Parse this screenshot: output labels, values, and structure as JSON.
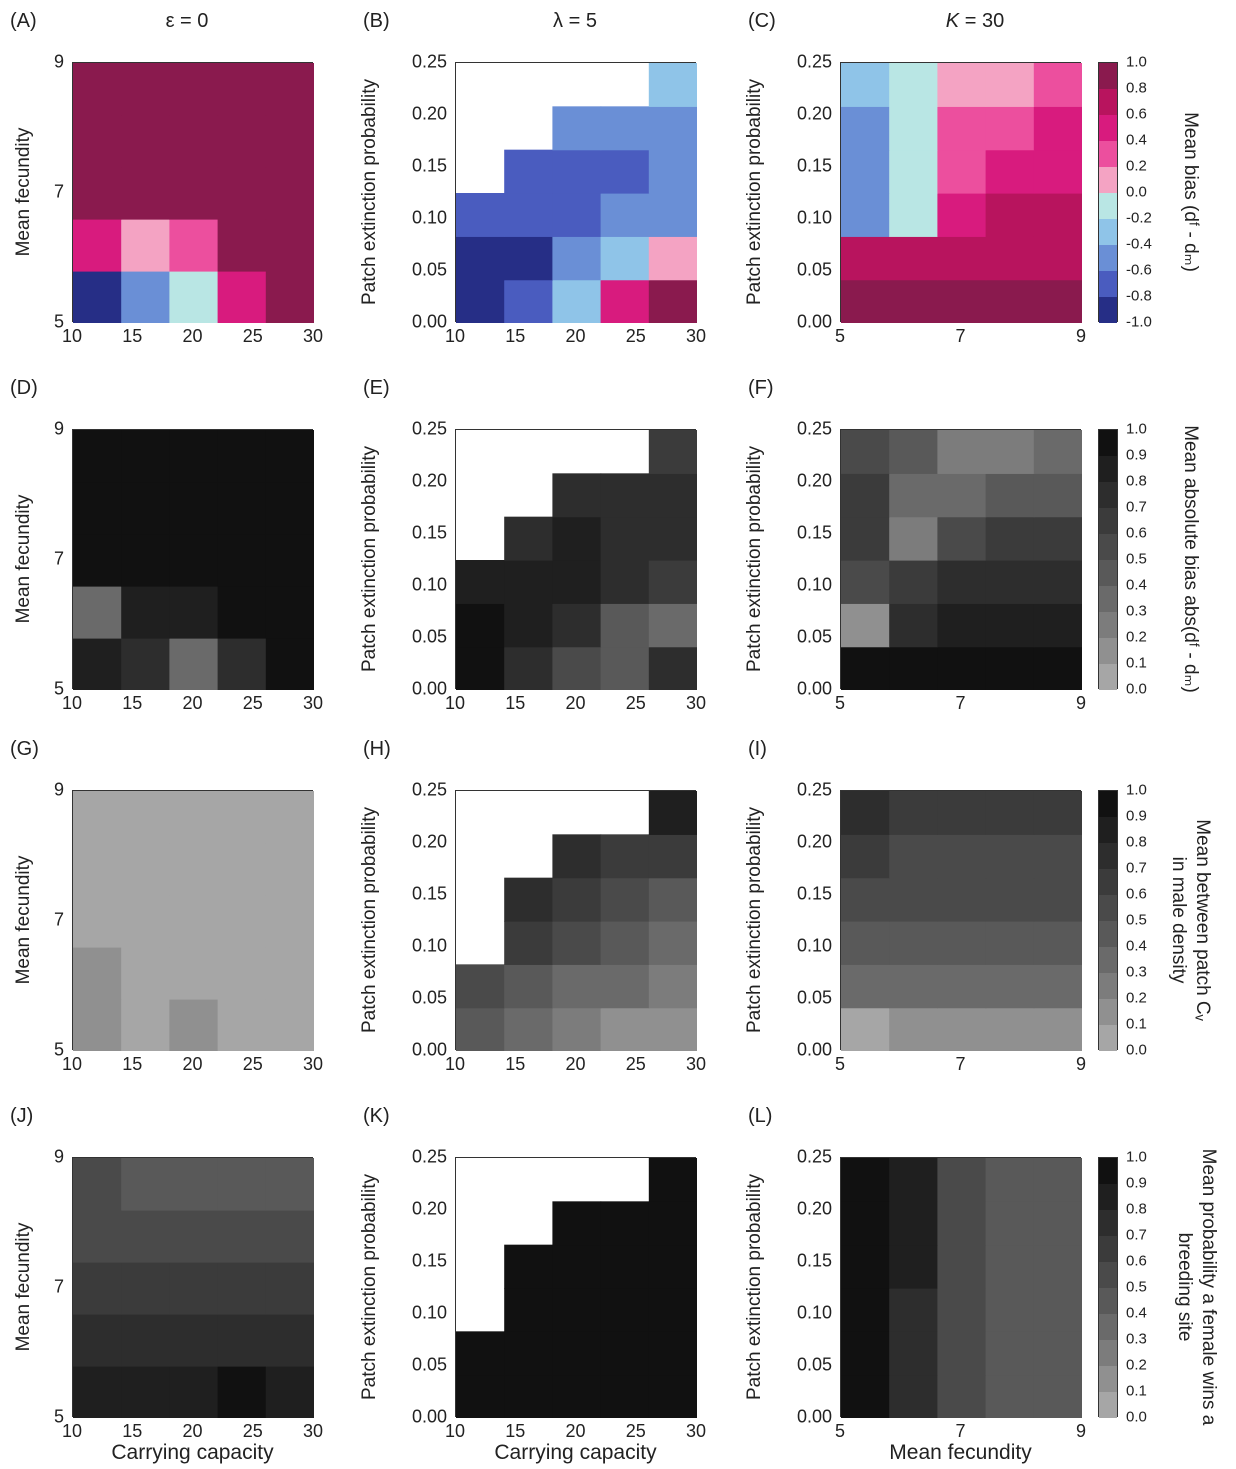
{
  "column_titles": [
    "ε = 0",
    "λ = 5",
    "K = 30"
  ],
  "panel_labels": [
    "(A)",
    "(B)",
    "(C)",
    "(D)",
    "(E)",
    "(F)",
    "(G)",
    "(H)",
    "(I)",
    "(J)",
    "(K)",
    "(L)"
  ],
  "axis_labels": {
    "mean_fecundity": "Mean fecundity",
    "patch_extinction": "Patch extinction probability",
    "carrying_capacity": "Carrying capacity",
    "mean_fecundity_x": "Mean fecundity"
  },
  "ticks": {
    "fecundity": [
      "5",
      "7",
      "9"
    ],
    "capacity": [
      "10",
      "15",
      "20",
      "25",
      "30"
    ],
    "capacity_last": [
      "10",
      "15",
      "20",
      "25",
      "30"
    ],
    "extinction": [
      "0.00",
      "0.05",
      "0.10",
      "0.15",
      "0.20",
      "0.25"
    ]
  },
  "colorbars": [
    {
      "label": "Mean bias (dᶠ - dₘ)",
      "ticks": [
        "1.0",
        "0.8",
        "0.6",
        "0.4",
        "0.2",
        "0.0",
        "-0.2",
        "-0.4",
        "-0.6",
        "-0.8",
        "-1.0"
      ],
      "colors": [
        "#8a1a4e",
        "#b8145e",
        "#d81b7e",
        "#ec4f9e",
        "#f4a3c3",
        "#b9e6e4",
        "#8fc4e8",
        "#6a8fd6",
        "#4a5cbf",
        "#262e86"
      ]
    },
    {
      "label": "Mean absolute bias abs(dᶠ - dₘ)",
      "ticks": [
        "1.0",
        "0.9",
        "0.8",
        "0.7",
        "0.6",
        "0.5",
        "0.4",
        "0.3",
        "0.2",
        "0.1",
        "0.0"
      ],
      "colors": [
        "#111111",
        "#1f1f1f",
        "#2d2d2d",
        "#3b3b3b",
        "#4a4a4a",
        "#595959",
        "#6a6a6a",
        "#7c7c7c",
        "#909090",
        "#a6a6a6"
      ]
    },
    {
      "label": "Mean between patch Cᵥ|in male density",
      "ticks": [
        "1.0",
        "0.9",
        "0.8",
        "0.7",
        "0.6",
        "0.5",
        "0.4",
        "0.3",
        "0.2",
        "0.1",
        "0.0"
      ],
      "colors": [
        "#111111",
        "#1f1f1f",
        "#2d2d2d",
        "#3b3b3b",
        "#4a4a4a",
        "#595959",
        "#6a6a6a",
        "#7c7c7c",
        "#909090",
        "#a6a6a6"
      ]
    },
    {
      "label": "Mean probability a female wins a|breeding site",
      "ticks": [
        "1.0",
        "0.9",
        "0.8",
        "0.7",
        "0.6",
        "0.5",
        "0.4",
        "0.3",
        "0.2",
        "0.1",
        "0.0"
      ],
      "colors": [
        "#111111",
        "#1f1f1f",
        "#2d2d2d",
        "#3b3b3b",
        "#4a4a4a",
        "#595959",
        "#6a6a6a",
        "#7c7c7c",
        "#909090",
        "#a6a6a6"
      ]
    }
  ],
  "chart_data": [
    {
      "panel": "A",
      "type": "heatmap",
      "x": [
        10,
        15,
        20,
        25,
        30
      ],
      "y": [
        5,
        6,
        7,
        8,
        9
      ],
      "xlabel": "",
      "ylabel": "Mean fecundity",
      "zlim": [
        -1,
        1
      ],
      "z": [
        [
          -0.9,
          -0.5,
          -0.2,
          0.5,
          1.0
        ],
        [
          0.4,
          0.1,
          0.2,
          1.0,
          1.0
        ],
        [
          1.0,
          1.0,
          1.0,
          1.0,
          1.0
        ],
        [
          1.0,
          1.0,
          1.0,
          1.0,
          1.0
        ],
        [
          1.0,
          1.0,
          1.0,
          1.0,
          1.0
        ]
      ]
    },
    {
      "panel": "B",
      "type": "heatmap",
      "x": [
        10,
        15,
        20,
        25,
        30
      ],
      "y": [
        0,
        0.05,
        0.1,
        0.15,
        0.2,
        0.25
      ],
      "xlabel": "",
      "ylabel": "Patch extinction probability",
      "zlim": [
        -1,
        1
      ],
      "z": [
        [
          -0.9,
          -0.7,
          -0.4,
          0.4,
          0.9
        ],
        [
          -0.9,
          -0.8,
          -0.6,
          -0.3,
          0.1
        ],
        [
          -0.7,
          -0.7,
          -0.7,
          -0.6,
          -0.5
        ],
        [
          null,
          -0.7,
          -0.7,
          -0.7,
          -0.6
        ],
        [
          null,
          null,
          -0.6,
          -0.6,
          -0.6
        ],
        [
          null,
          null,
          null,
          null,
          -0.4
        ]
      ]
    },
    {
      "panel": "C",
      "type": "heatmap",
      "x": [
        5,
        6,
        7,
        8,
        9
      ],
      "y": [
        0,
        0.05,
        0.1,
        0.15,
        0.2,
        0.25
      ],
      "xlabel": "",
      "ylabel": "Patch extinction probability",
      "zlim": [
        -1,
        1
      ],
      "z": [
        [
          0.8,
          0.9,
          0.9,
          0.9,
          0.9
        ],
        [
          0.6,
          0.6,
          0.7,
          0.7,
          0.7
        ],
        [
          -0.5,
          -0.1,
          0.5,
          0.6,
          0.6
        ],
        [
          -0.6,
          -0.1,
          0.3,
          0.5,
          0.5
        ],
        [
          -0.6,
          -0.1,
          0.2,
          0.3,
          0.4
        ],
        [
          -0.3,
          -0.1,
          0.1,
          0.1,
          0.2
        ]
      ]
    },
    {
      "panel": "D",
      "type": "heatmap",
      "x": [
        10,
        15,
        20,
        25,
        30
      ],
      "y": [
        5,
        6,
        7,
        8,
        9
      ],
      "xlabel": "",
      "ylabel": "Mean fecundity",
      "zlim": [
        0,
        1
      ],
      "z": [
        [
          0.85,
          0.7,
          0.3,
          0.75,
          1.0
        ],
        [
          0.3,
          0.85,
          0.85,
          1.0,
          1.0
        ],
        [
          1.0,
          1.0,
          1.0,
          1.0,
          1.0
        ],
        [
          1.0,
          1.0,
          1.0,
          1.0,
          1.0
        ],
        [
          1.0,
          1.0,
          1.0,
          1.0,
          1.0
        ]
      ]
    },
    {
      "panel": "E",
      "type": "heatmap",
      "x": [
        10,
        15,
        20,
        25,
        30
      ],
      "y": [
        0,
        0.05,
        0.1,
        0.15,
        0.2,
        0.25
      ],
      "xlabel": "",
      "ylabel": "Patch extinction probability",
      "zlim": [
        0,
        1
      ],
      "z": [
        [
          0.9,
          0.75,
          0.5,
          0.45,
          0.75
        ],
        [
          0.9,
          0.85,
          0.7,
          0.4,
          0.35
        ],
        [
          0.8,
          0.85,
          0.8,
          0.7,
          0.6
        ],
        [
          null,
          0.75,
          0.8,
          0.75,
          0.7
        ],
        [
          null,
          null,
          0.7,
          0.7,
          0.7
        ],
        [
          null,
          null,
          null,
          null,
          0.65
        ]
      ]
    },
    {
      "panel": "F",
      "type": "heatmap",
      "x": [
        5,
        6,
        7,
        8,
        9
      ],
      "y": [
        0,
        0.05,
        0.1,
        0.15,
        0.2,
        0.25
      ],
      "xlabel": "",
      "ylabel": "Patch extinction probability",
      "zlim": [
        0,
        1
      ],
      "z": [
        [
          0.95,
          0.95,
          0.95,
          0.95,
          0.95
        ],
        [
          0.1,
          0.75,
          0.85,
          0.85,
          0.85
        ],
        [
          0.55,
          0.65,
          0.75,
          0.75,
          0.75
        ],
        [
          0.65,
          0.25,
          0.5,
          0.6,
          0.6
        ],
        [
          0.6,
          0.3,
          0.35,
          0.4,
          0.45
        ],
        [
          0.5,
          0.4,
          0.25,
          0.25,
          0.35
        ]
      ]
    },
    {
      "panel": "G",
      "type": "heatmap",
      "x": [
        10,
        15,
        20,
        25,
        30
      ],
      "y": [
        5,
        6,
        7,
        8,
        9
      ],
      "xlabel": "",
      "ylabel": "Mean fecundity",
      "zlim": [
        0,
        1
      ],
      "z": [
        [
          0.15,
          0.05,
          0.1,
          0.05,
          0.05
        ],
        [
          0.1,
          0.05,
          0.05,
          0.0,
          0.0
        ],
        [
          0.05,
          0.05,
          0.0,
          0.0,
          0.0
        ],
        [
          0.0,
          0.0,
          0.0,
          0.0,
          0.0
        ],
        [
          0.0,
          0.0,
          0.0,
          0.0,
          0.0
        ]
      ]
    },
    {
      "panel": "H",
      "type": "heatmap",
      "x": [
        10,
        15,
        20,
        25,
        30
      ],
      "y": [
        0,
        0.05,
        0.1,
        0.15,
        0.2,
        0.25
      ],
      "xlabel": "",
      "ylabel": "Patch extinction probability",
      "zlim": [
        0,
        1
      ],
      "z": [
        [
          0.4,
          0.3,
          0.2,
          0.15,
          0.1
        ],
        [
          0.55,
          0.45,
          0.35,
          0.3,
          0.25
        ],
        [
          null,
          0.6,
          0.5,
          0.4,
          0.35
        ],
        [
          null,
          0.7,
          0.6,
          0.5,
          0.45
        ],
        [
          null,
          null,
          0.7,
          0.65,
          0.6
        ],
        [
          null,
          null,
          null,
          null,
          0.8
        ]
      ]
    },
    {
      "panel": "I",
      "type": "heatmap",
      "x": [
        5,
        6,
        7,
        8,
        9
      ],
      "y": [
        0,
        0.05,
        0.1,
        0.15,
        0.2,
        0.25
      ],
      "xlabel": "",
      "ylabel": "Patch extinction probability",
      "zlim": [
        0,
        1
      ],
      "z": [
        [
          0.05,
          0.1,
          0.1,
          0.1,
          0.1
        ],
        [
          0.3,
          0.3,
          0.3,
          0.3,
          0.3
        ],
        [
          0.45,
          0.4,
          0.4,
          0.4,
          0.4
        ],
        [
          0.55,
          0.5,
          0.5,
          0.5,
          0.5
        ],
        [
          0.65,
          0.55,
          0.55,
          0.55,
          0.55
        ],
        [
          0.75,
          0.6,
          0.6,
          0.6,
          0.6
        ]
      ]
    },
    {
      "panel": "J",
      "type": "heatmap",
      "x": [
        10,
        15,
        20,
        25,
        30
      ],
      "y": [
        5,
        6,
        7,
        8,
        9
      ],
      "xlabel": "Carrying capacity",
      "ylabel": "Mean fecundity",
      "zlim": [
        0,
        1
      ],
      "z": [
        [
          0.85,
          0.8,
          0.85,
          0.9,
          0.85
        ],
        [
          0.75,
          0.75,
          0.75,
          0.75,
          0.7
        ],
        [
          0.65,
          0.65,
          0.65,
          0.65,
          0.6
        ],
        [
          0.55,
          0.5,
          0.5,
          0.5,
          0.5
        ],
        [
          0.5,
          0.45,
          0.45,
          0.45,
          0.45
        ]
      ]
    },
    {
      "panel": "K",
      "type": "heatmap",
      "x": [
        10,
        15,
        20,
        25,
        30
      ],
      "y": [
        0,
        0.05,
        0.1,
        0.15,
        0.2,
        0.25
      ],
      "xlabel": "Carrying capacity",
      "ylabel": "Patch extinction probability",
      "zlim": [
        0,
        1
      ],
      "z": [
        [
          0.95,
          0.95,
          0.95,
          0.95,
          0.95
        ],
        [
          0.95,
          0.95,
          0.95,
          0.95,
          0.95
        ],
        [
          null,
          0.95,
          0.95,
          0.95,
          0.95
        ],
        [
          null,
          0.95,
          0.95,
          0.95,
          0.95
        ],
        [
          null,
          null,
          0.95,
          0.95,
          0.95
        ],
        [
          null,
          null,
          null,
          null,
          0.95
        ]
      ]
    },
    {
      "panel": "L",
      "type": "heatmap",
      "x": [
        5,
        6,
        7,
        8,
        9
      ],
      "y": [
        0,
        0.05,
        0.1,
        0.15,
        0.2,
        0.25
      ],
      "xlabel": "Mean fecundity",
      "ylabel": "Patch extinction probability",
      "zlim": [
        0,
        1
      ],
      "z": [
        [
          0.95,
          0.7,
          0.55,
          0.45,
          0.45
        ],
        [
          0.95,
          0.75,
          0.55,
          0.45,
          0.45
        ],
        [
          0.95,
          0.75,
          0.55,
          0.45,
          0.45
        ],
        [
          0.95,
          0.8,
          0.55,
          0.45,
          0.45
        ],
        [
          0.95,
          0.8,
          0.55,
          0.45,
          0.45
        ],
        [
          0.95,
          0.85,
          0.55,
          0.45,
          0.45
        ]
      ]
    }
  ]
}
